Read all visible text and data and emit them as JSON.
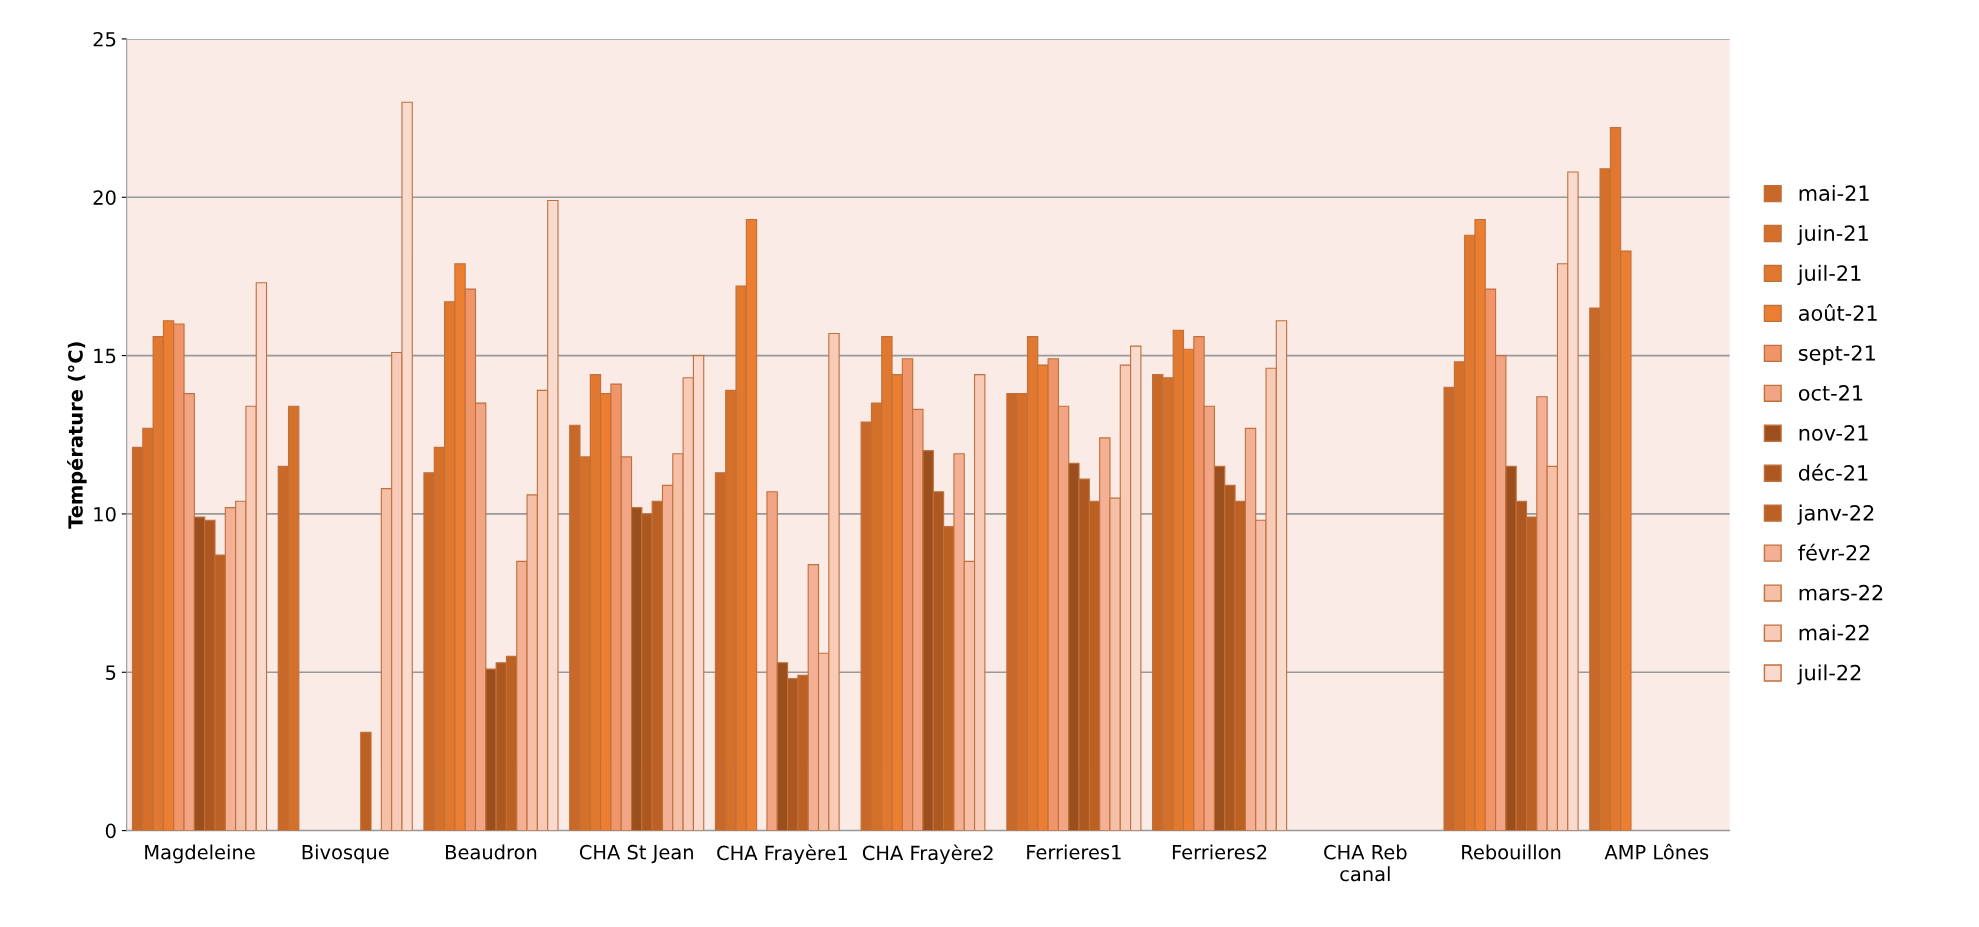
{
  "chart_data": {
    "type": "bar",
    "ylabel": "Température (°C)",
    "categories": [
      "Magdeleine",
      "Bivosque",
      "Beaudron",
      "CHA St Jean",
      "CHA Frayère1",
      "CHA Frayère2",
      "Ferrieres1",
      "Ferrieres2",
      "CHA Reb\ncanal",
      "Rebouillon",
      "AMP Lônes"
    ],
    "series": [
      {
        "name": "mai-21",
        "color": "#c8692a",
        "values": [
          12.1,
          11.5,
          11.3,
          12.8,
          11.3,
          12.9,
          13.8,
          14.4,
          null,
          14.0,
          16.5
        ]
      },
      {
        "name": "juin-21",
        "color": "#d5702b",
        "values": [
          12.7,
          13.4,
          12.1,
          11.8,
          13.9,
          13.5,
          13.8,
          14.3,
          null,
          14.8,
          20.9
        ]
      },
      {
        "name": "juil-21",
        "color": "#e0782f",
        "values": [
          15.6,
          null,
          16.7,
          14.4,
          17.2,
          15.6,
          15.6,
          15.8,
          null,
          18.8,
          22.2
        ]
      },
      {
        "name": "août-21",
        "color": "#ec7e32",
        "values": [
          16.1,
          null,
          17.9,
          13.8,
          19.3,
          14.4,
          14.7,
          15.2,
          null,
          19.3,
          18.3
        ]
      },
      {
        "name": "sept-21",
        "color": "#f0956a",
        "values": [
          16.0,
          null,
          17.1,
          14.1,
          null,
          14.9,
          14.9,
          15.6,
          null,
          17.1,
          null
        ]
      },
      {
        "name": "oct-21",
        "color": "#f2a585",
        "values": [
          13.8,
          null,
          13.5,
          11.8,
          10.7,
          13.3,
          13.4,
          13.4,
          null,
          15.0,
          null
        ]
      },
      {
        "name": "nov-21",
        "color": "#9c4f1e",
        "values": [
          9.9,
          null,
          5.1,
          10.2,
          5.3,
          12.0,
          11.6,
          11.5,
          null,
          11.5,
          null
        ]
      },
      {
        "name": "déc-21",
        "color": "#ad5821",
        "values": [
          9.8,
          null,
          5.3,
          10.0,
          4.8,
          10.7,
          11.1,
          10.9,
          null,
          10.4,
          null
        ]
      },
      {
        "name": "janv-22",
        "color": "#bb6124",
        "values": [
          8.7,
          3.1,
          5.5,
          10.4,
          4.9,
          9.6,
          10.4,
          10.4,
          null,
          9.9,
          null
        ]
      },
      {
        "name": "févr-22",
        "color": "#f3b095",
        "values": [
          10.2,
          null,
          8.5,
          10.9,
          8.4,
          11.9,
          12.4,
          12.7,
          null,
          13.7,
          null
        ]
      },
      {
        "name": "mars-22",
        "color": "#f5bfa8",
        "values": [
          10.4,
          10.8,
          10.6,
          11.9,
          5.6,
          8.5,
          10.5,
          9.8,
          null,
          11.5,
          null
        ]
      },
      {
        "name": "mai-22",
        "color": "#f7cbb8",
        "values": [
          13.4,
          15.1,
          13.9,
          14.3,
          15.7,
          14.4,
          14.7,
          14.6,
          null,
          17.9,
          null
        ]
      },
      {
        "name": "juil-22",
        "color": "#f9dacf",
        "values": [
          17.3,
          23.0,
          19.9,
          15.0,
          null,
          null,
          15.3,
          16.1,
          null,
          20.8,
          null
        ]
      }
    ],
    "ylim": [
      0,
      25
    ],
    "yticks": [
      0,
      5,
      10,
      15,
      20,
      25
    ],
    "grid": "y",
    "legend": "right"
  }
}
